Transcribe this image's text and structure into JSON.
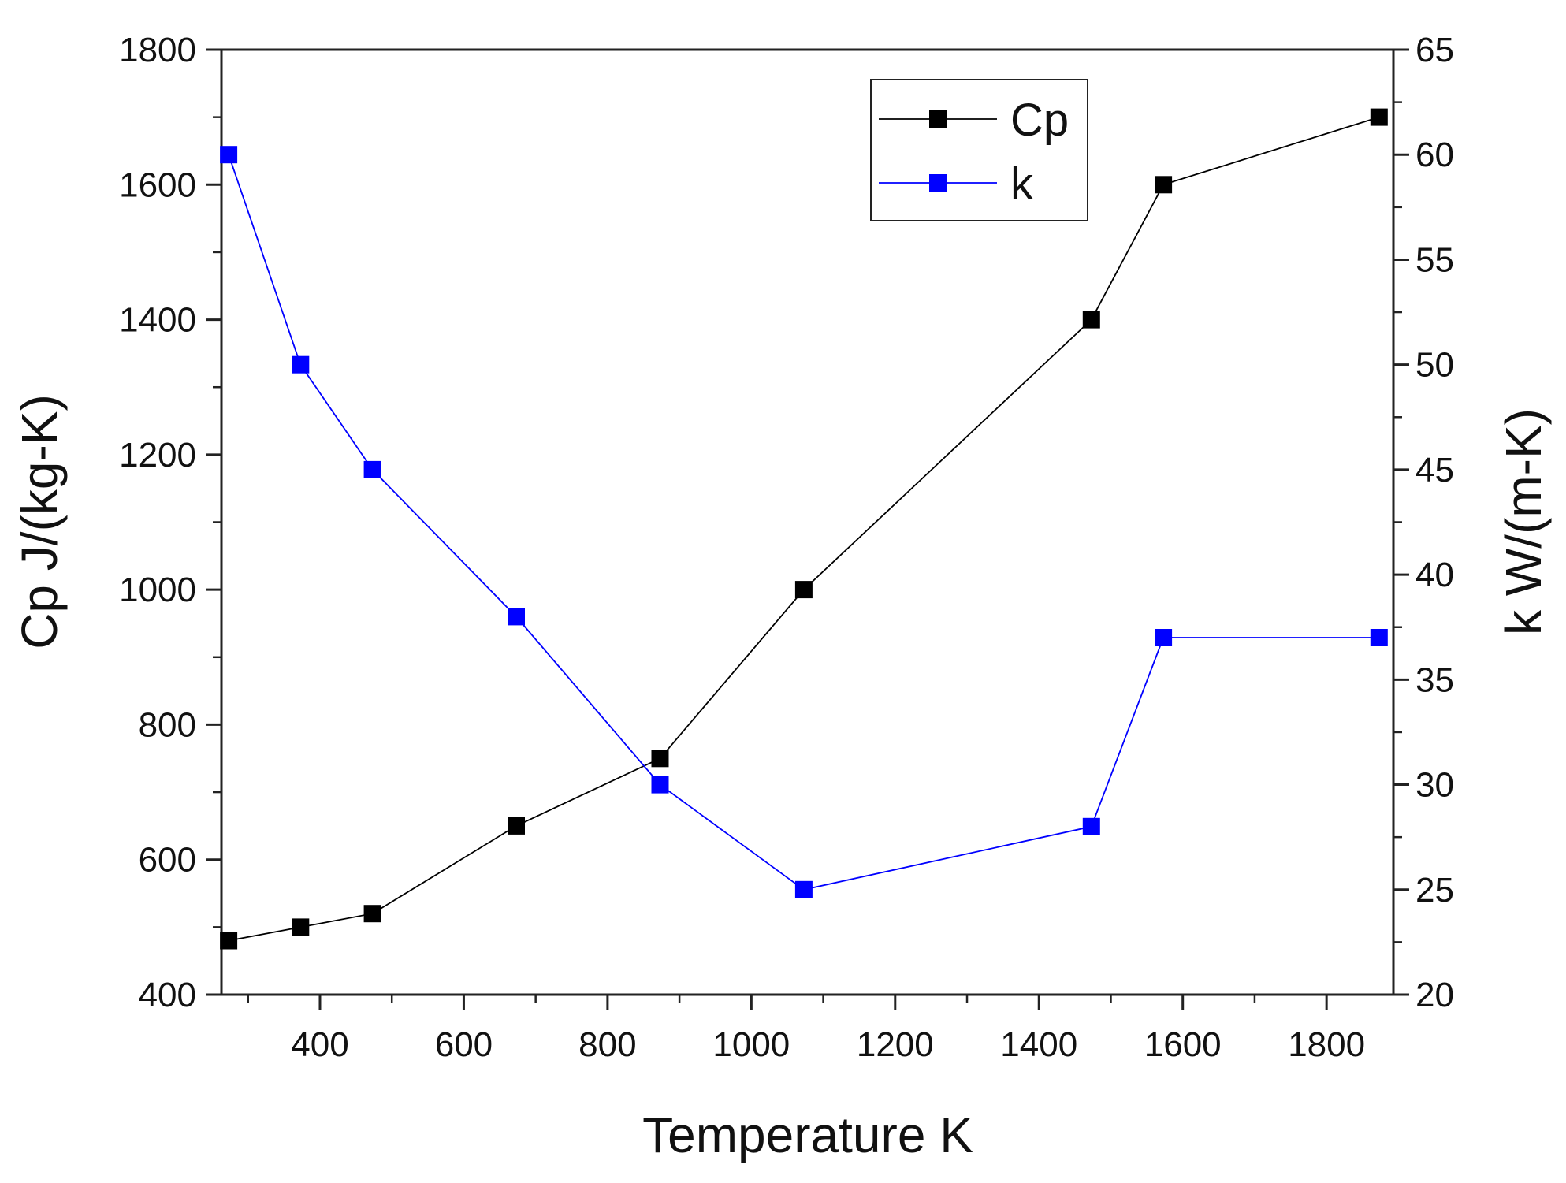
{
  "chart_data": {
    "type": "line",
    "title": "",
    "x": [
      273,
      373,
      473,
      673,
      873,
      1073,
      1473,
      1573,
      1873
    ],
    "xlabel": "Temperature K",
    "xlim": [
      263,
      1893
    ],
    "xticks": [
      400,
      600,
      800,
      1000,
      1200,
      1400,
      1600,
      1800
    ],
    "ylabel_left": "Cp J/(kg-K)",
    "ylim_left": [
      400,
      1800
    ],
    "yticks_left": [
      400,
      600,
      800,
      1000,
      1200,
      1400,
      1600,
      1800
    ],
    "ylabel_right": "k W/(m-K)",
    "ylim_right": [
      20,
      65
    ],
    "yticks_right": [
      20,
      25,
      30,
      35,
      40,
      45,
      50,
      55,
      60,
      65
    ],
    "legend_position": "top-center",
    "series": [
      {
        "name": "Cp",
        "axis": "left",
        "color": "#000000",
        "values": [
          480,
          500,
          520,
          650,
          750,
          1000,
          1400,
          1600,
          1700
        ]
      },
      {
        "name": "k",
        "axis": "right",
        "color": "#0000ff",
        "values": [
          60,
          50,
          45,
          38,
          30,
          25,
          28,
          37,
          37
        ]
      }
    ]
  }
}
